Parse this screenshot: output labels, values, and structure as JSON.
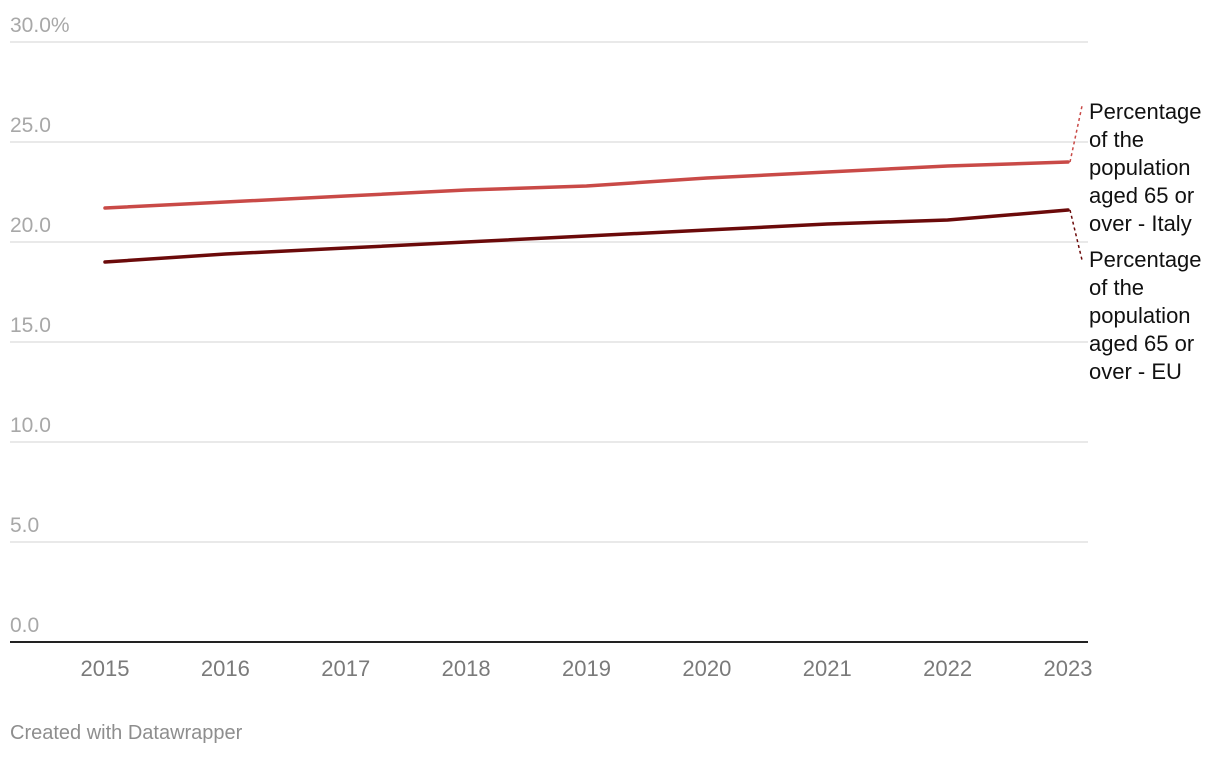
{
  "chart_data": {
    "type": "line",
    "title": "",
    "xlabel": "",
    "ylabel": "",
    "x": [
      2015,
      2016,
      2017,
      2018,
      2019,
      2020,
      2021,
      2022,
      2023
    ],
    "x_tick_labels": [
      "2015",
      "2016",
      "2017",
      "2018",
      "2019",
      "2020",
      "2021",
      "2022",
      "2023"
    ],
    "ylim": [
      0,
      30
    ],
    "y_ticks": [
      0,
      5,
      10,
      15,
      20,
      25,
      30
    ],
    "y_tick_labels": [
      "0.0",
      "5.0",
      "10.0",
      "15.0",
      "20.0",
      "25.0",
      "30.0%"
    ],
    "grid": true,
    "legend": "direct labels at line ends (right)",
    "series": [
      {
        "name": "Percentage of the population aged 65 or over - Italy",
        "label_lines": [
          "Percentage",
          "of the",
          "population",
          "aged 65 or",
          "over - Italy"
        ],
        "color": "#c94a47",
        "values": [
          21.7,
          22.0,
          22.3,
          22.6,
          22.8,
          23.2,
          23.5,
          23.8,
          24.0
        ]
      },
      {
        "name": "Percentage of the population aged 65 or over - EU",
        "label_lines": [
          "Percentage",
          "of the",
          "population",
          "aged 65 or",
          "over - EU"
        ],
        "color": "#6b0a0a",
        "values": [
          19.0,
          19.4,
          19.7,
          20.0,
          20.3,
          20.6,
          20.9,
          21.1,
          21.6
        ]
      }
    ]
  },
  "footer": {
    "credit": "Created with Datawrapper"
  }
}
